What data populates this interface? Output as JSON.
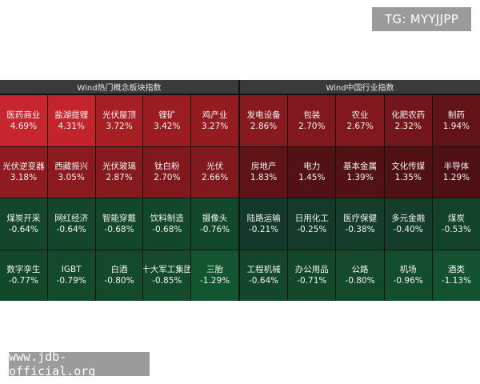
{
  "tg_badge": "TG: MYYJJPP",
  "watermark": "www.jdb-official.org",
  "panels": {
    "left": {
      "title": "Wind热门概念板块指数",
      "tiles": [
        {
          "name": "医药商业",
          "value": "4.69%",
          "color": "#c8262e"
        },
        {
          "name": "盐湖提锂",
          "value": "4.31%",
          "color": "#c3242b"
        },
        {
          "name": "光伏屋顶",
          "value": "3.72%",
          "color": "#a61f25"
        },
        {
          "name": "锂矿",
          "value": "3.42%",
          "color": "#9b1d22"
        },
        {
          "name": "鸡产业",
          "value": "3.27%",
          "color": "#941c21"
        },
        {
          "name": "光伏逆变器",
          "value": "3.18%",
          "color": "#8f1b20"
        },
        {
          "name": "西藏振兴",
          "value": "3.05%",
          "color": "#8b1a1f"
        },
        {
          "name": "光伏玻璃",
          "value": "2.87%",
          "color": "#86191e"
        },
        {
          "name": "钛白粉",
          "value": "2.70%",
          "color": "#81181d"
        },
        {
          "name": "光伏",
          "value": "2.66%",
          "color": "#80181d"
        },
        {
          "name": "煤炭开采",
          "value": "-0.64%",
          "color": "#13462a"
        },
        {
          "name": "网红经济",
          "value": "-0.64%",
          "color": "#13462a"
        },
        {
          "name": "智能穿戴",
          "value": "-0.68%",
          "color": "#13472a"
        },
        {
          "name": "饮料制造",
          "value": "-0.68%",
          "color": "#13472a"
        },
        {
          "name": "摄像头",
          "value": "-0.76%",
          "color": "#13492b"
        },
        {
          "name": "数字孪生",
          "value": "-0.77%",
          "color": "#13492b"
        },
        {
          "name": "IGBT",
          "value": "-0.79%",
          "color": "#134a2c"
        },
        {
          "name": "白酒",
          "value": "-0.80%",
          "color": "#134a2c"
        },
        {
          "name": "十大军工集团",
          "value": "-0.85%",
          "color": "#134b2c"
        },
        {
          "name": "三胎",
          "value": "-1.29%",
          "color": "#12562f"
        }
      ]
    },
    "right": {
      "title": "Wind中国行业指数",
      "tiles": [
        {
          "name": "发电设备",
          "value": "2.86%",
          "color": "#871a1f"
        },
        {
          "name": "包装",
          "value": "2.70%",
          "color": "#81181d"
        },
        {
          "name": "农业",
          "value": "2.67%",
          "color": "#80181d"
        },
        {
          "name": "化肥农药",
          "value": "2.32%",
          "color": "#73161b"
        },
        {
          "name": "制药",
          "value": "1.94%",
          "color": "#621318"
        },
        {
          "name": "房地产",
          "value": "1.83%",
          "color": "#5f1317"
        },
        {
          "name": "电力",
          "value": "1.45%",
          "color": "#521115"
        },
        {
          "name": "基本金属",
          "value": "1.39%",
          "color": "#511115"
        },
        {
          "name": "文化传媒",
          "value": "1.35%",
          "color": "#501115"
        },
        {
          "name": "半导体",
          "value": "1.29%",
          "color": "#4e1014"
        },
        {
          "name": "陆路运输",
          "value": "-0.21%",
          "color": "#14392a"
        },
        {
          "name": "日用化工",
          "value": "-0.25%",
          "color": "#143a2a"
        },
        {
          "name": "医疗保健",
          "value": "-0.38%",
          "color": "#143d2a"
        },
        {
          "name": "多元金融",
          "value": "-0.40%",
          "color": "#143e2a"
        },
        {
          "name": "煤炭",
          "value": "-0.53%",
          "color": "#13422a"
        },
        {
          "name": "工程机械",
          "value": "-0.64%",
          "color": "#13462a"
        },
        {
          "name": "办公用品",
          "value": "-0.71%",
          "color": "#13482b"
        },
        {
          "name": "公路",
          "value": "-0.80%",
          "color": "#134a2c"
        },
        {
          "name": "机场",
          "value": "-0.96%",
          "color": "#124e2d"
        },
        {
          "name": "酒类",
          "value": "-1.13%",
          "color": "#12522e"
        }
      ]
    }
  }
}
